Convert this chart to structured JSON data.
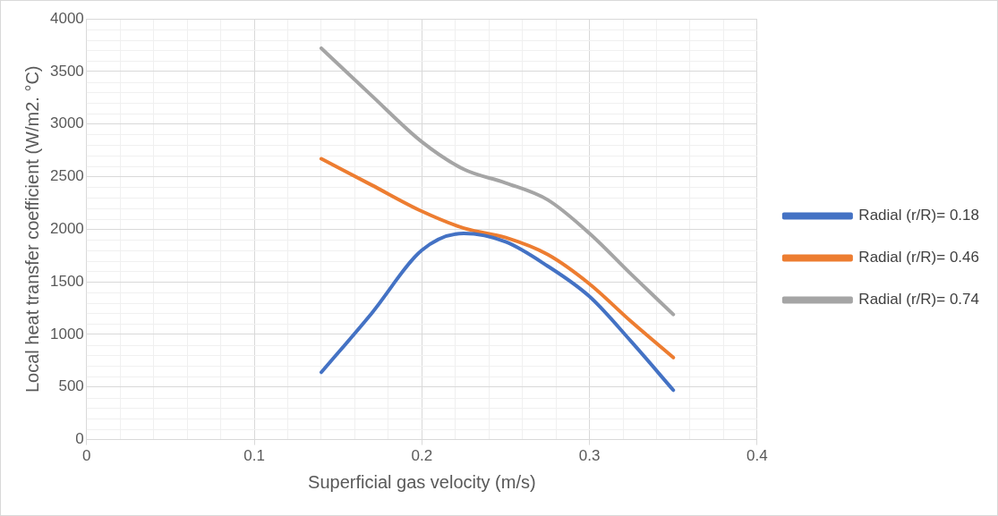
{
  "chart_data": {
    "type": "line",
    "xlabel": "Superficial gas velocity (m/s)",
    "ylabel": "Local heat transfer coefficient (W/m2. °C)",
    "x": [
      0.14,
      0.17,
      0.2,
      0.225,
      0.25,
      0.275,
      0.3,
      0.325,
      0.35
    ],
    "series": [
      {
        "name": "Radial (r/R)= 0.18",
        "color": "#4472c4",
        "values": [
          640,
          1200,
          1800,
          1960,
          1880,
          1650,
          1360,
          930,
          470
        ]
      },
      {
        "name": "Radial (r/R)= 0.46",
        "color": "#ed7d31",
        "values": [
          2670,
          2420,
          2170,
          2010,
          1920,
          1760,
          1480,
          1120,
          780
        ]
      },
      {
        "name": "Radial (r/R)= 0.74",
        "color": "#a5a5a5",
        "values": [
          3720,
          3270,
          2830,
          2570,
          2440,
          2280,
          1960,
          1570,
          1190
        ]
      }
    ],
    "xlim": [
      0,
      0.4
    ],
    "xticks": [
      0,
      {
        "value": 0.02,
        "label": null
      },
      {
        "value": 0.04,
        "label": null
      },
      {
        "value": 0.06,
        "label": null
      },
      {
        "value": 0.08,
        "label": null
      },
      0.1,
      {
        "value": 0.12,
        "label": null
      },
      {
        "value": 0.14,
        "label": null
      },
      {
        "value": 0.16,
        "label": null
      },
      {
        "value": 0.18,
        "label": null
      },
      0.2,
      {
        "value": 0.22,
        "label": null
      },
      {
        "value": 0.24,
        "label": null
      },
      {
        "value": 0.26,
        "label": null
      },
      {
        "value": 0.28,
        "label": null
      },
      0.3,
      {
        "value": 0.32,
        "label": null
      },
      {
        "value": 0.34,
        "label": null
      },
      {
        "value": 0.36,
        "label": null
      },
      {
        "value": 0.38,
        "label": null
      },
      0.4
    ],
    "ylim": [
      0,
      4000
    ],
    "yticks": [
      0,
      500,
      1000,
      1500,
      2000,
      2500,
      3000,
      3500,
      4000
    ],
    "grid": true,
    "legend": "right",
    "marker": "none",
    "line_style": "solid"
  }
}
